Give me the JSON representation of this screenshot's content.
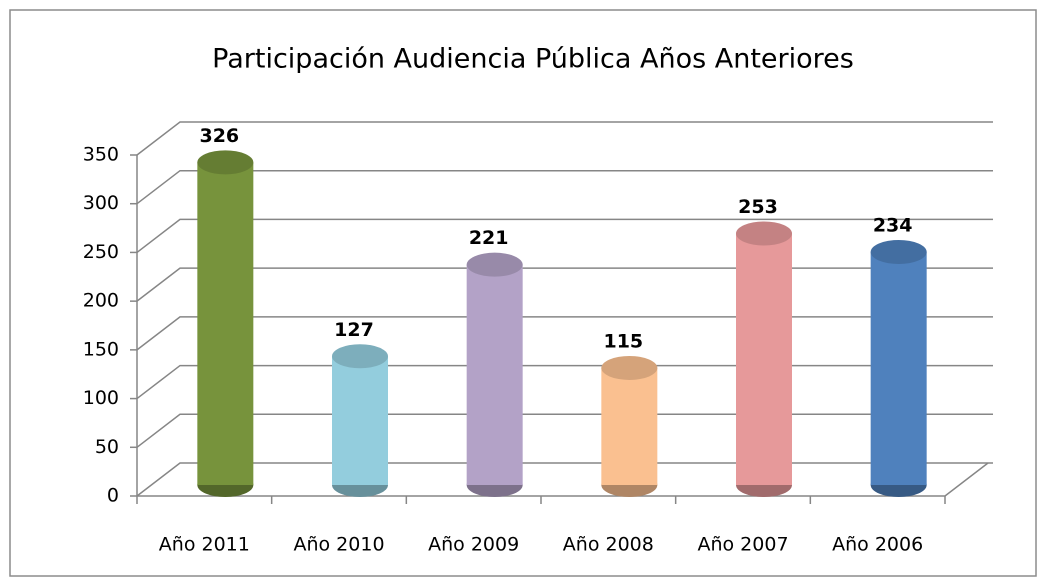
{
  "chart_data": {
    "type": "bar",
    "title": "Participación Audiencia Pública Años Anteriores",
    "categories": [
      "Año 2011",
      "Año 2010",
      "Año 2009",
      "Año 2008",
      "Año 2007",
      "Año 2006"
    ],
    "values": [
      326,
      127,
      221,
      115,
      253,
      234
    ],
    "colors": [
      "#77933c",
      "#93cddd",
      "#b3a2c7",
      "#fac090",
      "#e6999a",
      "#4f81bd"
    ],
    "ylim": [
      0,
      350
    ],
    "yticks": [
      0,
      50,
      100,
      150,
      200,
      250,
      300,
      350
    ],
    "grid": true
  }
}
